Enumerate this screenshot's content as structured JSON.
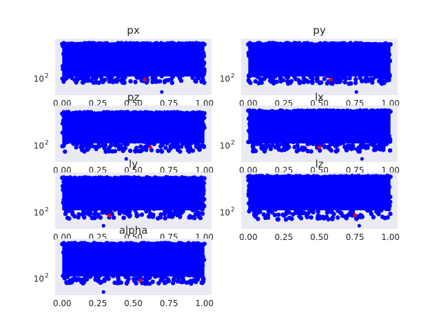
{
  "chart_data": [
    {
      "type": "scatter",
      "title": "px",
      "xticks": [
        "0.00",
        "0.25",
        "0.50",
        "0.75",
        "1.00"
      ],
      "xlim": [
        -0.05,
        1.05
      ],
      "yscale": "log",
      "ylim": [
        30,
        2000
      ],
      "ytick_labels": [
        {
          "value": 100,
          "label": "10",
          "exp": "2"
        }
      ],
      "band": {
        "y_low": 120,
        "y_high": 1350,
        "floor": 75,
        "left_drop": 0.1
      },
      "outliers": [
        {
          "x": 0.7,
          "y": 38
        }
      ],
      "highlight": {
        "x": 0.58,
        "y": 95,
        "color": "#ff0000"
      }
    },
    {
      "type": "scatter",
      "title": "py",
      "xticks": [
        "0.00",
        "0.25",
        "0.50",
        "0.75",
        "1.00"
      ],
      "xlim": [
        -0.05,
        1.05
      ],
      "yscale": "log",
      "ylim": [
        30,
        2000
      ],
      "ytick_labels": [
        {
          "value": 100,
          "label": "10",
          "exp": "2"
        }
      ],
      "band": {
        "y_low": 120,
        "y_high": 1350,
        "floor": 70,
        "left_drop": 0.0
      },
      "outliers": [
        {
          "x": 0.76,
          "y": 38
        }
      ],
      "highlight": {
        "x": 0.58,
        "y": 95,
        "color": "#ff0000"
      }
    },
    {
      "type": "scatter",
      "title": "pz",
      "xticks": [
        "0.00",
        "0.25",
        "0.50",
        "0.75",
        "1.00"
      ],
      "xlim": [
        -0.05,
        1.05
      ],
      "yscale": "log",
      "ylim": [
        30,
        2000
      ],
      "ytick_labels": [
        {
          "value": 100,
          "label": "10",
          "exp": "2"
        }
      ],
      "band": {
        "y_low": 120,
        "y_high": 1150,
        "floor": 65,
        "left_drop": 0.0
      },
      "outliers": [
        {
          "x": 0.45,
          "y": 38
        }
      ],
      "highlight": {
        "x": 0.62,
        "y": 90,
        "color": "#ff0000"
      }
    },
    {
      "type": "scatter",
      "title": "lx",
      "xticks": [
        "0.00",
        "0.25",
        "0.50",
        "0.75",
        "1.00"
      ],
      "xlim": [
        -0.05,
        1.05
      ],
      "yscale": "log",
      "ylim": [
        30,
        2000
      ],
      "ytick_labels": [
        {
          "value": 100,
          "label": "10",
          "exp": "2"
        }
      ],
      "band": {
        "y_low": 120,
        "y_high": 1300,
        "floor": 65,
        "left_drop": 0.5
      },
      "outliers": [
        {
          "x": 0.8,
          "y": 38
        }
      ],
      "highlight": {
        "x": 0.5,
        "y": 90,
        "color": "#ff0000"
      }
    },
    {
      "type": "scatter",
      "title": "ly",
      "xticks": [
        "0.00",
        "0.25",
        "0.50",
        "0.75",
        "1.00"
      ],
      "xlim": [
        -0.05,
        1.05
      ],
      "yscale": "log",
      "ylim": [
        30,
        2000
      ],
      "ytick_labels": [
        {
          "value": 100,
          "label": "10",
          "exp": "2"
        }
      ],
      "band": {
        "y_low": 120,
        "y_high": 1300,
        "floor": 65,
        "left_drop": 0.2
      },
      "outliers": [
        {
          "x": 0.29,
          "y": 38
        }
      ],
      "highlight": {
        "x": 0.33,
        "y": 82,
        "color": "#ff0000"
      }
    },
    {
      "type": "scatter",
      "title": "lz",
      "xticks": [
        "0.00",
        "0.25",
        "0.50",
        "0.75",
        "1.00"
      ],
      "xlim": [
        -0.05,
        1.05
      ],
      "yscale": "log",
      "ylim": [
        30,
        2000
      ],
      "ytick_labels": [
        {
          "value": 100,
          "label": "10",
          "exp": "2"
        }
      ],
      "band": {
        "y_low": 120,
        "y_high": 1450,
        "floor": 60,
        "left_drop": 0.15
      },
      "outliers": [
        {
          "x": 0.78,
          "y": 38
        }
      ],
      "highlight": {
        "x": 0.75,
        "y": 82,
        "color": "#ff0000"
      }
    },
    {
      "type": "scatter",
      "title": "alpha",
      "xticks": [
        "0.00",
        "0.25",
        "0.50",
        "0.75",
        "1.00"
      ],
      "xlim": [
        -0.05,
        1.05
      ],
      "yscale": "log",
      "ylim": [
        30,
        2000
      ],
      "ytick_labels": [
        {
          "value": 100,
          "label": "10",
          "exp": "2"
        }
      ],
      "band": {
        "y_low": 120,
        "y_high": 1350,
        "floor": 70,
        "left_drop": 0.0
      },
      "outliers": [
        {
          "x": 0.29,
          "y": 38
        }
      ],
      "highlight": {
        "x": 0.55,
        "y": 88,
        "color": "#ff0000"
      }
    }
  ],
  "colors": {
    "points": "#0000ff",
    "highlight": "#ff0000",
    "panel_background": "#eaeaf2",
    "text": "#262626"
  },
  "grid": false
}
